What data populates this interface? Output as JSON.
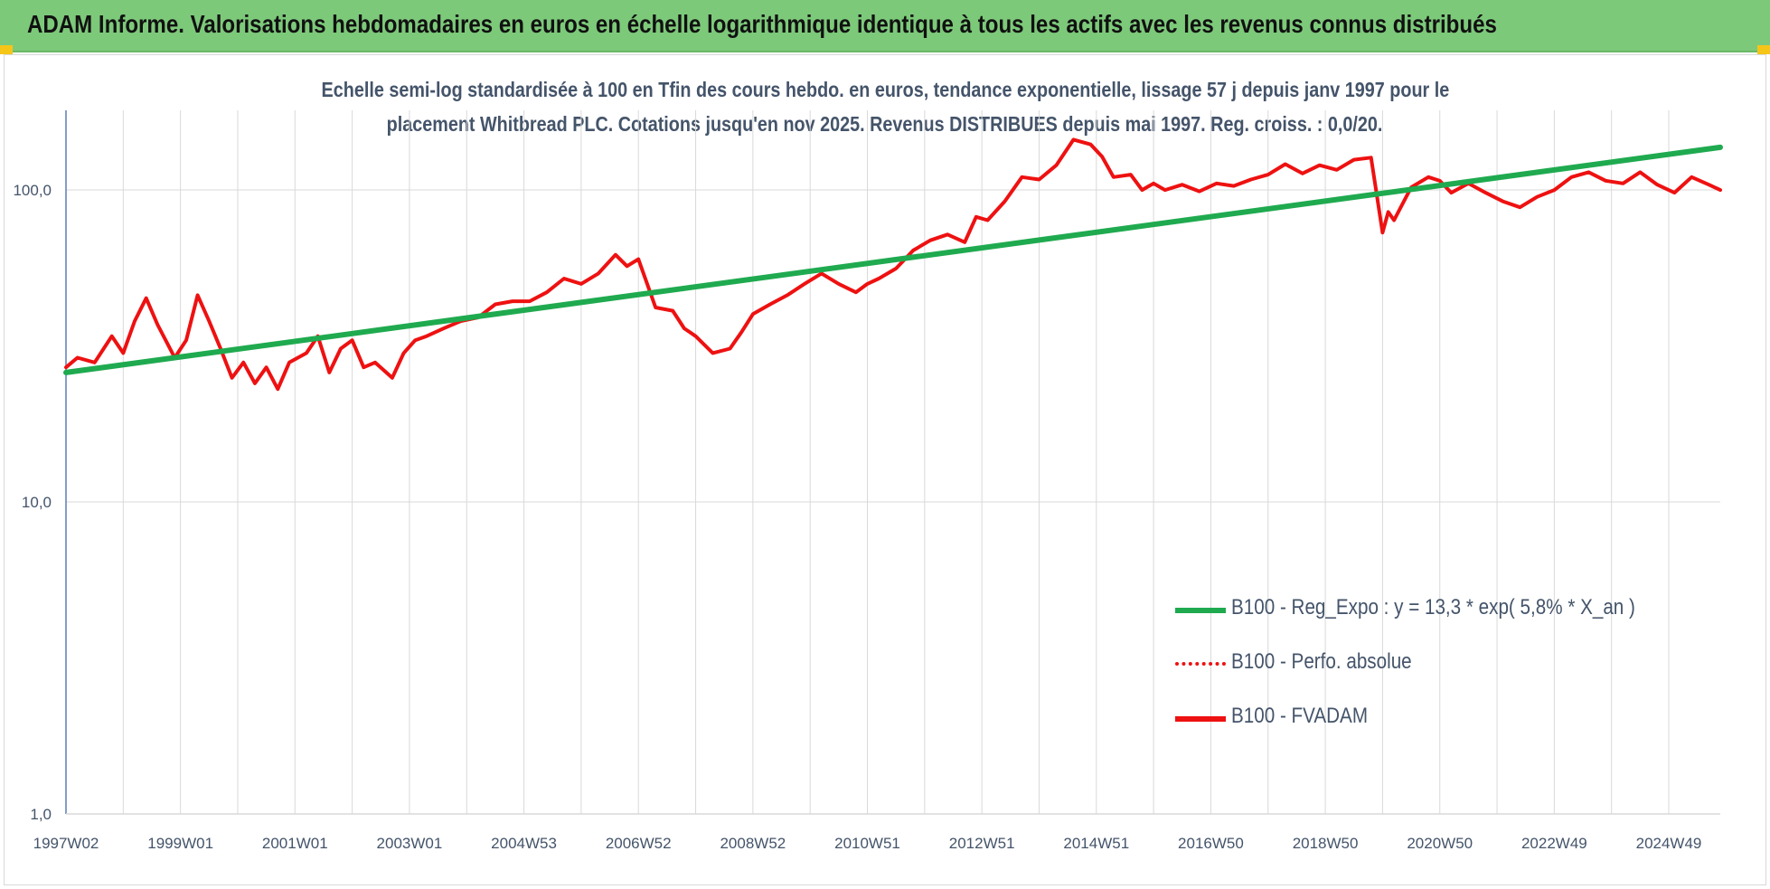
{
  "header": {
    "title": "ADAM Informe. Valorisations hebdomadaires en euros en échelle logarithmique identique à tous les actifs avec les revenus connus distribués"
  },
  "colors": {
    "banner": "#7dc97a",
    "regression": "#1faa4f",
    "fvadam": "#ee1111",
    "perfo": "#ee1111",
    "grid": "#d9d9d9",
    "text": "#44546a"
  },
  "chart_data": {
    "type": "line",
    "title_line1": "Echelle semi-log standardisée à 100 en Tfin des cours hebdo. en euros, tendance exponentielle, lissage 57 j depuis janv 1997 pour le",
    "title_line2": "placement Whitbread PLC. Cotations jusqu'en nov 2025.  Revenus DISTRIBUES depuis mai 1997. Reg. croiss. : 0,0/20.",
    "y_scale": "log",
    "ylim": [
      1,
      180
    ],
    "y_ticks": [
      1,
      10,
      100
    ],
    "y_tick_labels": [
      "1,0",
      "10,0",
      "100,0"
    ],
    "xlim": [
      1997.0,
      2025.9
    ],
    "x_ticks": [
      1997.0,
      1999.0,
      2001.0,
      2003.0,
      2005.0,
      2007.0,
      2009.0,
      2011.0,
      2013.0,
      2015.0,
      2017.0,
      2019.0,
      2021.0,
      2023.0,
      2025.0
    ],
    "x_tick_labels": [
      "1997W02",
      "1999W01",
      "2001W01",
      "2003W01",
      "2004W53",
      "2006W52",
      "2008W52",
      "2010W51",
      "2012W51",
      "2014W51",
      "2016W50",
      "2018W50",
      "2020W50",
      "2022W49",
      "2024W49"
    ],
    "grid": true,
    "legend_position": "bottom-right",
    "series": [
      {
        "name": "B100 - Reg_Expo : y = 13,3 * exp( 5,8% *  X_an )",
        "style": "solid-thick",
        "x": [
          1997.0,
          2025.9
        ],
        "y": [
          26.0,
          137.0
        ]
      },
      {
        "name": "B100 - Perfo. absolue",
        "style": "dotted",
        "x": [],
        "y": []
      },
      {
        "name": "B100 - FVADAM",
        "style": "solid",
        "x": [
          1997.0,
          1997.2,
          1997.5,
          1997.8,
          1998.0,
          1998.2,
          1998.4,
          1998.6,
          1998.9,
          1999.1,
          1999.3,
          1999.5,
          1999.7,
          1999.9,
          2000.1,
          2000.3,
          2000.5,
          2000.7,
          2000.9,
          2001.2,
          2001.4,
          2001.6,
          2001.8,
          2002.0,
          2002.2,
          2002.4,
          2002.7,
          2002.9,
          2003.1,
          2003.3,
          2003.6,
          2003.9,
          2004.2,
          2004.5,
          2004.8,
          2005.1,
          2005.4,
          2005.7,
          2006.0,
          2006.3,
          2006.6,
          2006.8,
          2007.0,
          2007.3,
          2007.6,
          2007.8,
          2008.0,
          2008.3,
          2008.6,
          2008.8,
          2009.0,
          2009.3,
          2009.6,
          2009.9,
          2010.2,
          2010.5,
          2010.8,
          2011.0,
          2011.2,
          2011.5,
          2011.8,
          2012.1,
          2012.4,
          2012.7,
          2012.9,
          2013.1,
          2013.4,
          2013.7,
          2014.0,
          2014.3,
          2014.6,
          2014.9,
          2015.1,
          2015.3,
          2015.6,
          2015.8,
          2016.0,
          2016.2,
          2016.5,
          2016.8,
          2017.1,
          2017.4,
          2017.7,
          2018.0,
          2018.3,
          2018.6,
          2018.9,
          2019.2,
          2019.5,
          2019.8,
          2020.0,
          2020.1,
          2020.2,
          2020.5,
          2020.8,
          2021.0,
          2021.2,
          2021.5,
          2021.8,
          2022.1,
          2022.4,
          2022.7,
          2023.0,
          2023.3,
          2023.6,
          2023.9,
          2024.2,
          2024.5,
          2024.8,
          2025.1,
          2025.4,
          2025.7,
          2025.9
        ],
        "y": [
          27,
          29,
          28,
          34,
          30,
          38,
          45,
          37,
          29,
          33,
          46,
          38,
          31,
          25,
          28,
          24,
          27,
          23,
          28,
          30,
          34,
          26,
          31,
          33,
          27,
          28,
          25,
          30,
          33,
          34,
          36,
          38,
          39,
          43,
          44,
          44,
          47,
          52,
          50,
          54,
          62,
          57,
          60,
          42,
          41,
          36,
          34,
          30,
          31,
          35,
          40,
          43,
          46,
          50,
          54,
          50,
          47,
          50,
          52,
          56,
          64,
          69,
          72,
          68,
          82,
          80,
          92,
          110,
          108,
          120,
          145,
          140,
          128,
          110,
          112,
          100,
          105,
          100,
          104,
          99,
          105,
          103,
          108,
          112,
          121,
          113,
          120,
          116,
          125,
          127,
          73,
          85,
          80,
          102,
          110,
          107,
          98,
          105,
          98,
          92,
          88,
          95,
          100,
          110,
          114,
          107,
          105,
          114,
          104,
          98,
          110,
          104,
          100
        ]
      }
    ]
  }
}
